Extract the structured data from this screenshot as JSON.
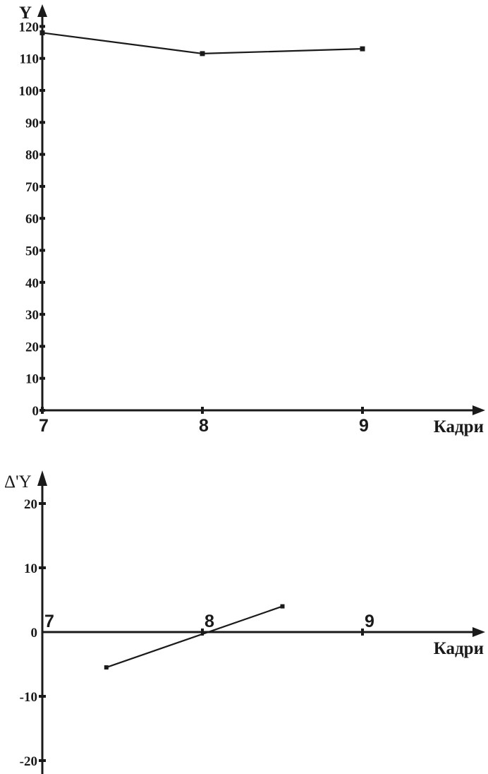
{
  "chart_data": [
    {
      "type": "line",
      "ylabel": "Y",
      "xlabel": "Кадри",
      "x": [
        7,
        8,
        9
      ],
      "x_ticks": [
        "7",
        "8",
        "9"
      ],
      "y_ticks": [
        "0",
        "10",
        "20",
        "30",
        "40",
        "50",
        "60",
        "70",
        "80",
        "90",
        "100",
        "110",
        "120"
      ],
      "ylim": [
        0,
        120
      ],
      "grid": false,
      "series": [
        {
          "values": [
            118,
            111.5,
            113
          ]
        }
      ]
    },
    {
      "type": "line",
      "ylabel": "Δ'Y",
      "xlabel": "Кадри",
      "x_ticks": [
        "7",
        "8",
        "9"
      ],
      "y_ticks": [
        "20",
        "10",
        "0",
        "-10",
        "-20"
      ],
      "ylim": [
        -20,
        20
      ],
      "grid": false,
      "series": [
        {
          "x": [
            7.4,
            8.5
          ],
          "values": [
            -5.5,
            4
          ]
        }
      ]
    }
  ]
}
